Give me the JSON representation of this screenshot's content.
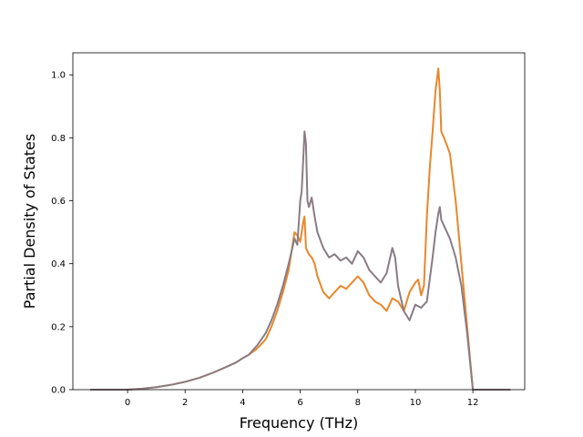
{
  "chart_data": {
    "type": "line",
    "xlabel": "Frequency (THz)",
    "ylabel": "Partial Density of States",
    "xlim": [
      -1.9,
      13.8
    ],
    "ylim": [
      0.0,
      1.07
    ],
    "xticks": [
      0,
      2,
      4,
      6,
      8,
      10,
      12
    ],
    "yticks": [
      0.0,
      0.2,
      0.4,
      0.6,
      0.8,
      1.0
    ],
    "xtick_labels": [
      "0",
      "2",
      "4",
      "6",
      "8",
      "10",
      "12"
    ],
    "ytick_labels": [
      "0.0",
      "0.2",
      "0.4",
      "0.6",
      "0.8",
      "1.0"
    ],
    "grid": false,
    "series": [
      {
        "color": "#e8872b",
        "x": [
          -1.3,
          -0.5,
          0,
          0.5,
          1,
          1.5,
          2,
          2.5,
          3,
          3.5,
          3.8,
          4,
          4.2,
          4.5,
          4.8,
          5,
          5.2,
          5.4,
          5.6,
          5.7,
          5.8,
          5.9,
          6.0,
          6.05,
          6.1,
          6.15,
          6.2,
          6.3,
          6.4,
          6.5,
          6.6,
          6.8,
          7.0,
          7.2,
          7.4,
          7.6,
          7.8,
          8.0,
          8.2,
          8.4,
          8.6,
          8.8,
          9.0,
          9.2,
          9.4,
          9.6,
          9.8,
          10.0,
          10.1,
          10.2,
          10.3,
          10.4,
          10.5,
          10.6,
          10.7,
          10.8,
          10.85,
          10.9,
          11.0,
          11.2,
          11.4,
          11.6,
          11.8,
          12.0,
          12.3,
          13.3
        ],
        "values": [
          0.0,
          0.0,
          0.0,
          0.003,
          0.008,
          0.015,
          0.025,
          0.038,
          0.055,
          0.075,
          0.088,
          0.1,
          0.11,
          0.13,
          0.16,
          0.2,
          0.25,
          0.31,
          0.38,
          0.44,
          0.5,
          0.49,
          0.47,
          0.5,
          0.53,
          0.55,
          0.45,
          0.43,
          0.42,
          0.4,
          0.36,
          0.31,
          0.29,
          0.31,
          0.33,
          0.32,
          0.34,
          0.36,
          0.34,
          0.3,
          0.28,
          0.27,
          0.25,
          0.29,
          0.28,
          0.25,
          0.31,
          0.34,
          0.35,
          0.3,
          0.33,
          0.55,
          0.7,
          0.82,
          0.95,
          1.02,
          0.95,
          0.82,
          0.8,
          0.75,
          0.6,
          0.4,
          0.2,
          0.0,
          0.0,
          0.0
        ]
      },
      {
        "color": "#8a7b85",
        "x": [
          -1.3,
          -0.5,
          0,
          0.5,
          1,
          1.5,
          2,
          2.5,
          3,
          3.5,
          3.8,
          4,
          4.2,
          4.5,
          4.8,
          5,
          5.2,
          5.4,
          5.6,
          5.7,
          5.8,
          5.9,
          6.0,
          6.05,
          6.1,
          6.15,
          6.2,
          6.25,
          6.3,
          6.4,
          6.5,
          6.6,
          6.8,
          7.0,
          7.2,
          7.4,
          7.6,
          7.8,
          8.0,
          8.2,
          8.4,
          8.6,
          8.8,
          9.0,
          9.2,
          9.3,
          9.4,
          9.6,
          9.8,
          10.0,
          10.2,
          10.4,
          10.6,
          10.7,
          10.8,
          10.85,
          10.9,
          11.0,
          11.2,
          11.4,
          11.6,
          11.8,
          12.0,
          12.3,
          13.3
        ],
        "values": [
          0.0,
          0.0,
          0.0,
          0.003,
          0.008,
          0.015,
          0.025,
          0.038,
          0.055,
          0.075,
          0.088,
          0.1,
          0.11,
          0.14,
          0.18,
          0.22,
          0.27,
          0.33,
          0.4,
          0.44,
          0.48,
          0.46,
          0.6,
          0.63,
          0.72,
          0.82,
          0.78,
          0.6,
          0.58,
          0.61,
          0.55,
          0.5,
          0.45,
          0.42,
          0.43,
          0.41,
          0.42,
          0.4,
          0.44,
          0.42,
          0.38,
          0.36,
          0.34,
          0.37,
          0.45,
          0.42,
          0.33,
          0.25,
          0.22,
          0.27,
          0.26,
          0.28,
          0.42,
          0.5,
          0.56,
          0.58,
          0.54,
          0.52,
          0.48,
          0.42,
          0.33,
          0.18,
          0.0,
          0.0,
          0.0
        ]
      }
    ]
  }
}
